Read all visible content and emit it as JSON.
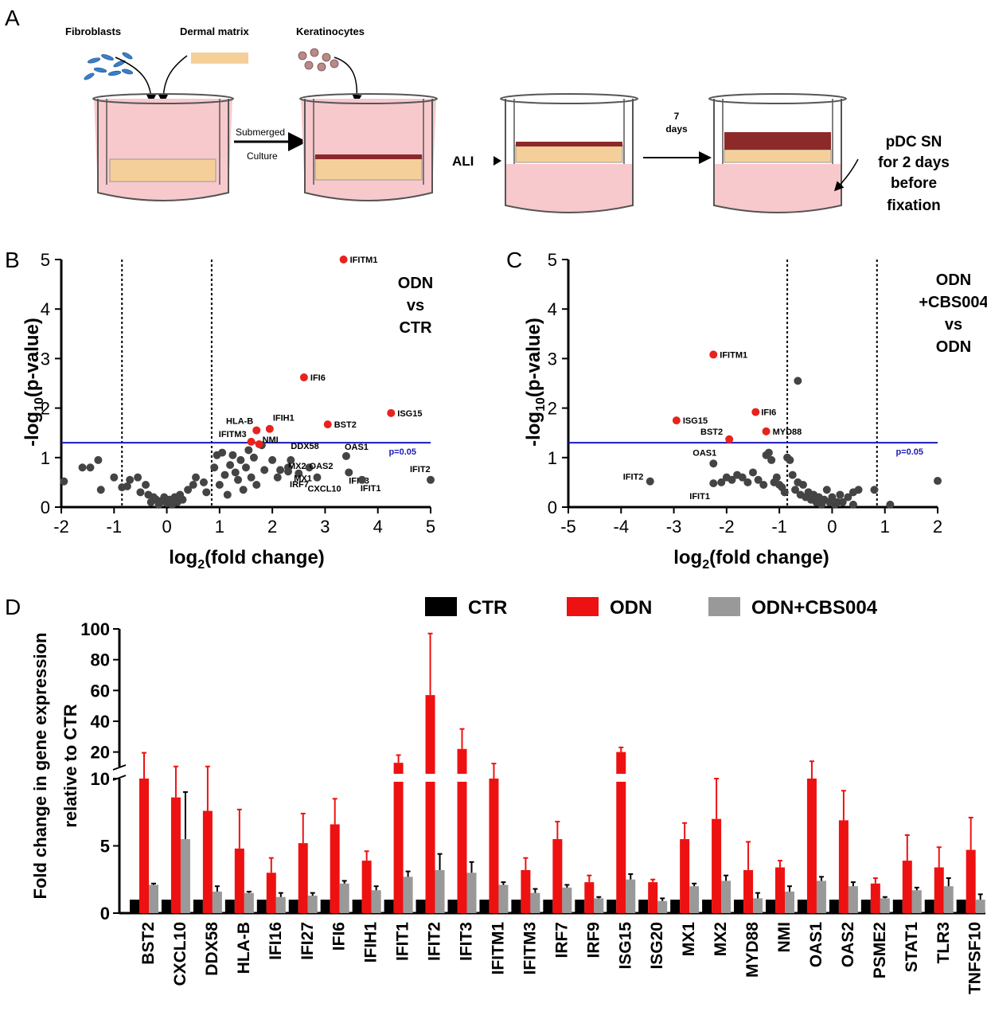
{
  "colors": {
    "red": "#e8221d",
    "dark_point": "#444444",
    "threshold": "#1a1ab8",
    "ctr_bar": "#000000",
    "odn_bar": "#ee1111",
    "cbs_bar": "#999999",
    "medium": "#f7c9cc",
    "matrix": "#f5cf9a"
  },
  "panel_a": {
    "letter": "A",
    "labels": {
      "fibroblasts": "Fibroblasts",
      "dermal_matrix": "Dermal matrix",
      "keratinocytes": "Keratinocytes",
      "submerged": "Submerged",
      "culture": "Culture",
      "ali": "ALI",
      "seven": "7",
      "days": "days",
      "pdc_lines": [
        "pDC SN",
        "for 2 days",
        "before",
        "fixation"
      ]
    }
  },
  "chart_data": [
    {
      "panel": "B",
      "type": "scatter",
      "title_lines": [
        "ODN",
        "vs",
        "CTR"
      ],
      "xlabel": "log₂(fold change)",
      "ylabel": "-log₁₀(p-value)",
      "xlim": [
        -2,
        5
      ],
      "ylim": [
        0,
        5
      ],
      "xticks": [
        -2,
        -1,
        0,
        1,
        2,
        3,
        4,
        5
      ],
      "yticks": [
        0,
        1,
        2,
        3,
        4,
        5
      ],
      "threshold": {
        "y": 1.3,
        "label": "p=0.05"
      },
      "vlines": [
        -0.85,
        0.85
      ],
      "labeled_points": [
        {
          "x": 3.35,
          "y": 5.0,
          "label": "IFITM1",
          "sig": true
        },
        {
          "x": 2.6,
          "y": 2.62,
          "label": "IFI6",
          "sig": true
        },
        {
          "x": 4.25,
          "y": 1.9,
          "label": "ISG15",
          "sig": true
        },
        {
          "x": 3.05,
          "y": 1.67,
          "label": "BST2",
          "sig": true
        },
        {
          "x": 1.7,
          "y": 1.55,
          "label": "HLA-B",
          "sig": true
        },
        {
          "x": 1.95,
          "y": 1.58,
          "label": "IFIH1",
          "sig": true
        },
        {
          "x": 1.6,
          "y": 1.32,
          "label": "IFITM3",
          "sig": true
        },
        {
          "x": 1.75,
          "y": 1.27,
          "label": "NMI",
          "sig": true
        },
        {
          "x": 3.4,
          "y": 1.03,
          "label": "OAS1",
          "sig": false
        },
        {
          "x": 2.35,
          "y": 0.95,
          "label": "DDX58",
          "sig": false
        },
        {
          "x": 2.3,
          "y": 0.8,
          "label": "MX2",
          "sig": false
        },
        {
          "x": 2.7,
          "y": 0.8,
          "label": "OAS2",
          "sig": false
        },
        {
          "x": 3.45,
          "y": 0.7,
          "label": "IFIT3",
          "sig": false
        },
        {
          "x": 2.5,
          "y": 0.68,
          "label": "MX1",
          "sig": false
        },
        {
          "x": 2.3,
          "y": 0.72,
          "label": "IRF7",
          "sig": false
        },
        {
          "x": 2.85,
          "y": 0.6,
          "label": "CXCL10",
          "sig": false
        },
        {
          "x": 3.7,
          "y": 0.55,
          "label": "IFIT1",
          "sig": false
        },
        {
          "x": 5.0,
          "y": 0.55,
          "label": "IFIT2",
          "sig": false
        }
      ],
      "other_points": [
        [
          -1.95,
          0.52
        ],
        [
          -1.6,
          0.8
        ],
        [
          -1.45,
          0.8
        ],
        [
          -1.3,
          0.95
        ],
        [
          -1.25,
          0.35
        ],
        [
          -1.0,
          0.6
        ],
        [
          -0.85,
          0.4
        ],
        [
          -0.75,
          0.42
        ],
        [
          -0.7,
          0.55
        ],
        [
          -0.55,
          0.6
        ],
        [
          -0.5,
          0.3
        ],
        [
          -0.4,
          0.45
        ],
        [
          -0.35,
          0.25
        ],
        [
          -0.3,
          0.1
        ],
        [
          -0.25,
          0.2
        ],
        [
          -0.2,
          0.15
        ],
        [
          -0.15,
          0.05
        ],
        [
          -0.1,
          0.12
        ],
        [
          -0.05,
          0.2
        ],
        [
          0.0,
          0.08
        ],
        [
          0.05,
          0.15
        ],
        [
          0.1,
          0.05
        ],
        [
          0.15,
          0.2
        ],
        [
          0.2,
          0.1
        ],
        [
          0.25,
          0.25
        ],
        [
          0.3,
          0.15
        ],
        [
          0.4,
          0.35
        ],
        [
          0.5,
          0.45
        ],
        [
          0.55,
          0.6
        ],
        [
          0.75,
          0.3
        ],
        [
          0.7,
          0.5
        ],
        [
          0.9,
          0.8
        ],
        [
          0.95,
          1.05
        ],
        [
          1.0,
          0.45
        ],
        [
          1.05,
          1.1
        ],
        [
          1.1,
          0.65
        ],
        [
          1.15,
          0.25
        ],
        [
          1.2,
          0.85
        ],
        [
          1.25,
          1.05
        ],
        [
          1.3,
          0.7
        ],
        [
          1.35,
          0.55
        ],
        [
          1.4,
          0.95
        ],
        [
          1.45,
          0.35
        ],
        [
          1.5,
          0.8
        ],
        [
          1.55,
          1.15
        ],
        [
          1.6,
          0.6
        ],
        [
          1.65,
          1.0
        ],
        [
          1.7,
          0.45
        ],
        [
          1.8,
          1.25
        ],
        [
          1.85,
          0.75
        ],
        [
          2.0,
          0.95
        ],
        [
          2.1,
          0.6
        ],
        [
          2.15,
          0.75
        ]
      ]
    },
    {
      "panel": "C",
      "type": "scatter",
      "title_lines": [
        "ODN",
        "+CBS004",
        "vs",
        "ODN"
      ],
      "xlabel": "log₂(fold change)",
      "ylabel": "-log₁₀(p-value)",
      "xlim": [
        -5,
        2
      ],
      "ylim": [
        0,
        5
      ],
      "xticks": [
        -5,
        -4,
        -3,
        -2,
        -1,
        0,
        1,
        2
      ],
      "yticks": [
        0,
        1,
        2,
        3,
        4,
        5
      ],
      "threshold": {
        "y": 1.3,
        "label": "p=0.05"
      },
      "vlines": [
        -0.85,
        0.85
      ],
      "labeled_points": [
        {
          "x": -2.25,
          "y": 3.08,
          "label": "IFITM1",
          "sig": true
        },
        {
          "x": -1.45,
          "y": 1.92,
          "label": "IFI6",
          "sig": true
        },
        {
          "x": -2.95,
          "y": 1.75,
          "label": "ISG15",
          "sig": true
        },
        {
          "x": -1.95,
          "y": 1.37,
          "label": "BST2",
          "sig": true
        },
        {
          "x": -1.25,
          "y": 1.53,
          "label": "MYD88",
          "sig": true
        },
        {
          "x": -2.25,
          "y": 0.88,
          "label": "OAS1",
          "sig": false
        },
        {
          "x": -3.45,
          "y": 0.52,
          "label": "IFIT2",
          "sig": false
        },
        {
          "x": -2.25,
          "y": 0.48,
          "label": "IFIT1",
          "sig": false
        }
      ],
      "other_points": [
        [
          -0.65,
          2.55
        ],
        [
          -2.1,
          0.5
        ],
        [
          -2.0,
          0.6
        ],
        [
          -1.9,
          0.55
        ],
        [
          -1.8,
          0.65
        ],
        [
          -1.7,
          0.6
        ],
        [
          -1.6,
          0.5
        ],
        [
          -1.5,
          0.7
        ],
        [
          -1.4,
          0.55
        ],
        [
          -1.3,
          0.45
        ],
        [
          -1.25,
          1.05
        ],
        [
          -1.2,
          1.1
        ],
        [
          -1.15,
          0.95
        ],
        [
          -1.1,
          0.5
        ],
        [
          -1.05,
          0.6
        ],
        [
          -1.0,
          0.45
        ],
        [
          -0.95,
          0.4
        ],
        [
          -0.9,
          0.3
        ],
        [
          -0.85,
          1.0
        ],
        [
          -0.8,
          0.95
        ],
        [
          -0.75,
          0.65
        ],
        [
          -0.7,
          0.35
        ],
        [
          -0.65,
          0.5
        ],
        [
          -0.6,
          0.25
        ],
        [
          -0.55,
          0.45
        ],
        [
          -0.5,
          0.2
        ],
        [
          -0.45,
          0.3
        ],
        [
          -0.4,
          0.15
        ],
        [
          -0.35,
          0.25
        ],
        [
          -0.3,
          0.1
        ],
        [
          -0.25,
          0.2
        ],
        [
          -0.2,
          0.05
        ],
        [
          -0.15,
          0.15
        ],
        [
          -0.1,
          0.35
        ],
        [
          -0.05,
          0.1
        ],
        [
          0.0,
          0.2
        ],
        [
          0.05,
          0.05
        ],
        [
          0.1,
          0.1
        ],
        [
          0.15,
          0.25
        ],
        [
          0.2,
          0.1
        ],
        [
          0.3,
          0.2
        ],
        [
          0.4,
          0.3
        ],
        [
          0.4,
          0.05
        ],
        [
          0.5,
          0.35
        ],
        [
          0.8,
          0.35
        ],
        [
          1.1,
          0.05
        ],
        [
          2.0,
          0.53
        ]
      ]
    },
    {
      "panel": "D",
      "type": "bar",
      "ylabel_lines": [
        "Fold change in gene expression",
        "relative to CTR"
      ],
      "legend": [
        "CTR",
        "ODN",
        "ODN+CBS004"
      ],
      "yaxis": {
        "lower_ticks": [
          0,
          5,
          10
        ],
        "upper_ticks": [
          20,
          40,
          60,
          80,
          100
        ],
        "break_at": 10.5
      },
      "categories": [
        "BST2",
        "CXCL10",
        "DDX58",
        "HLA-B",
        "IFI16",
        "IFI27",
        "IFI6",
        "IFIH1",
        "IFIT1",
        "IFIT2",
        "IFIT3",
        "IFITM1",
        "IFITM3",
        "IRF7",
        "IRF9",
        "ISG15",
        "ISG20",
        "MX1",
        "MX2",
        "MYD88",
        "NMI",
        "OAS1",
        "OAS2",
        "PSME2",
        "STAT1",
        "TLR3",
        "TNFSF10"
      ],
      "series": [
        {
          "name": "CTR",
          "values": [
            1,
            1,
            1,
            1,
            1,
            1,
            1,
            1,
            1,
            1,
            1,
            1,
            1,
            1,
            1,
            1,
            1,
            1,
            1,
            1,
            1,
            1,
            1,
            1,
            1,
            1,
            1
          ],
          "errors": [
            0,
            0,
            0,
            0,
            0,
            0,
            0,
            0,
            0,
            0,
            0,
            0,
            0,
            0,
            0,
            0,
            0,
            0,
            0,
            0,
            0,
            0,
            0,
            0,
            0,
            0,
            0
          ]
        },
        {
          "name": "ODN",
          "values": [
            10.5,
            8.6,
            7.6,
            4.8,
            3.0,
            5.2,
            6.6,
            3.9,
            13.0,
            57.0,
            22.0,
            10.5,
            3.2,
            5.5,
            2.3,
            20.0,
            2.3,
            5.5,
            7.0,
            3.2,
            3.4,
            10.5,
            6.9,
            2.2,
            3.9,
            3.4,
            4.7
          ],
          "errors": [
            9.0,
            2.0,
            3.0,
            2.9,
            1.1,
            2.2,
            1.9,
            0.7,
            5.0,
            40.0,
            13.0,
            2.0,
            0.9,
            1.3,
            0.5,
            3.0,
            0.2,
            1.2,
            3.0,
            2.1,
            0.5,
            3.5,
            2.2,
            0.4,
            1.9,
            1.5,
            2.4
          ]
        },
        {
          "name": "ODN+CBS004",
          "values": [
            2.1,
            5.5,
            1.6,
            1.5,
            1.2,
            1.3,
            2.2,
            1.7,
            2.7,
            3.2,
            3.0,
            2.1,
            1.5,
            1.9,
            1.1,
            2.5,
            0.9,
            2.0,
            2.4,
            1.1,
            1.6,
            2.4,
            2.0,
            1.1,
            1.7,
            2.0,
            1.0
          ],
          "errors": [
            0.1,
            3.5,
            0.4,
            0.1,
            0.3,
            0.2,
            0.2,
            0.3,
            0.4,
            1.2,
            0.8,
            0.2,
            0.3,
            0.2,
            0.1,
            0.4,
            0.2,
            0.2,
            0.4,
            0.4,
            0.4,
            0.3,
            0.3,
            0.1,
            0.2,
            0.6,
            0.4
          ]
        }
      ]
    }
  ]
}
